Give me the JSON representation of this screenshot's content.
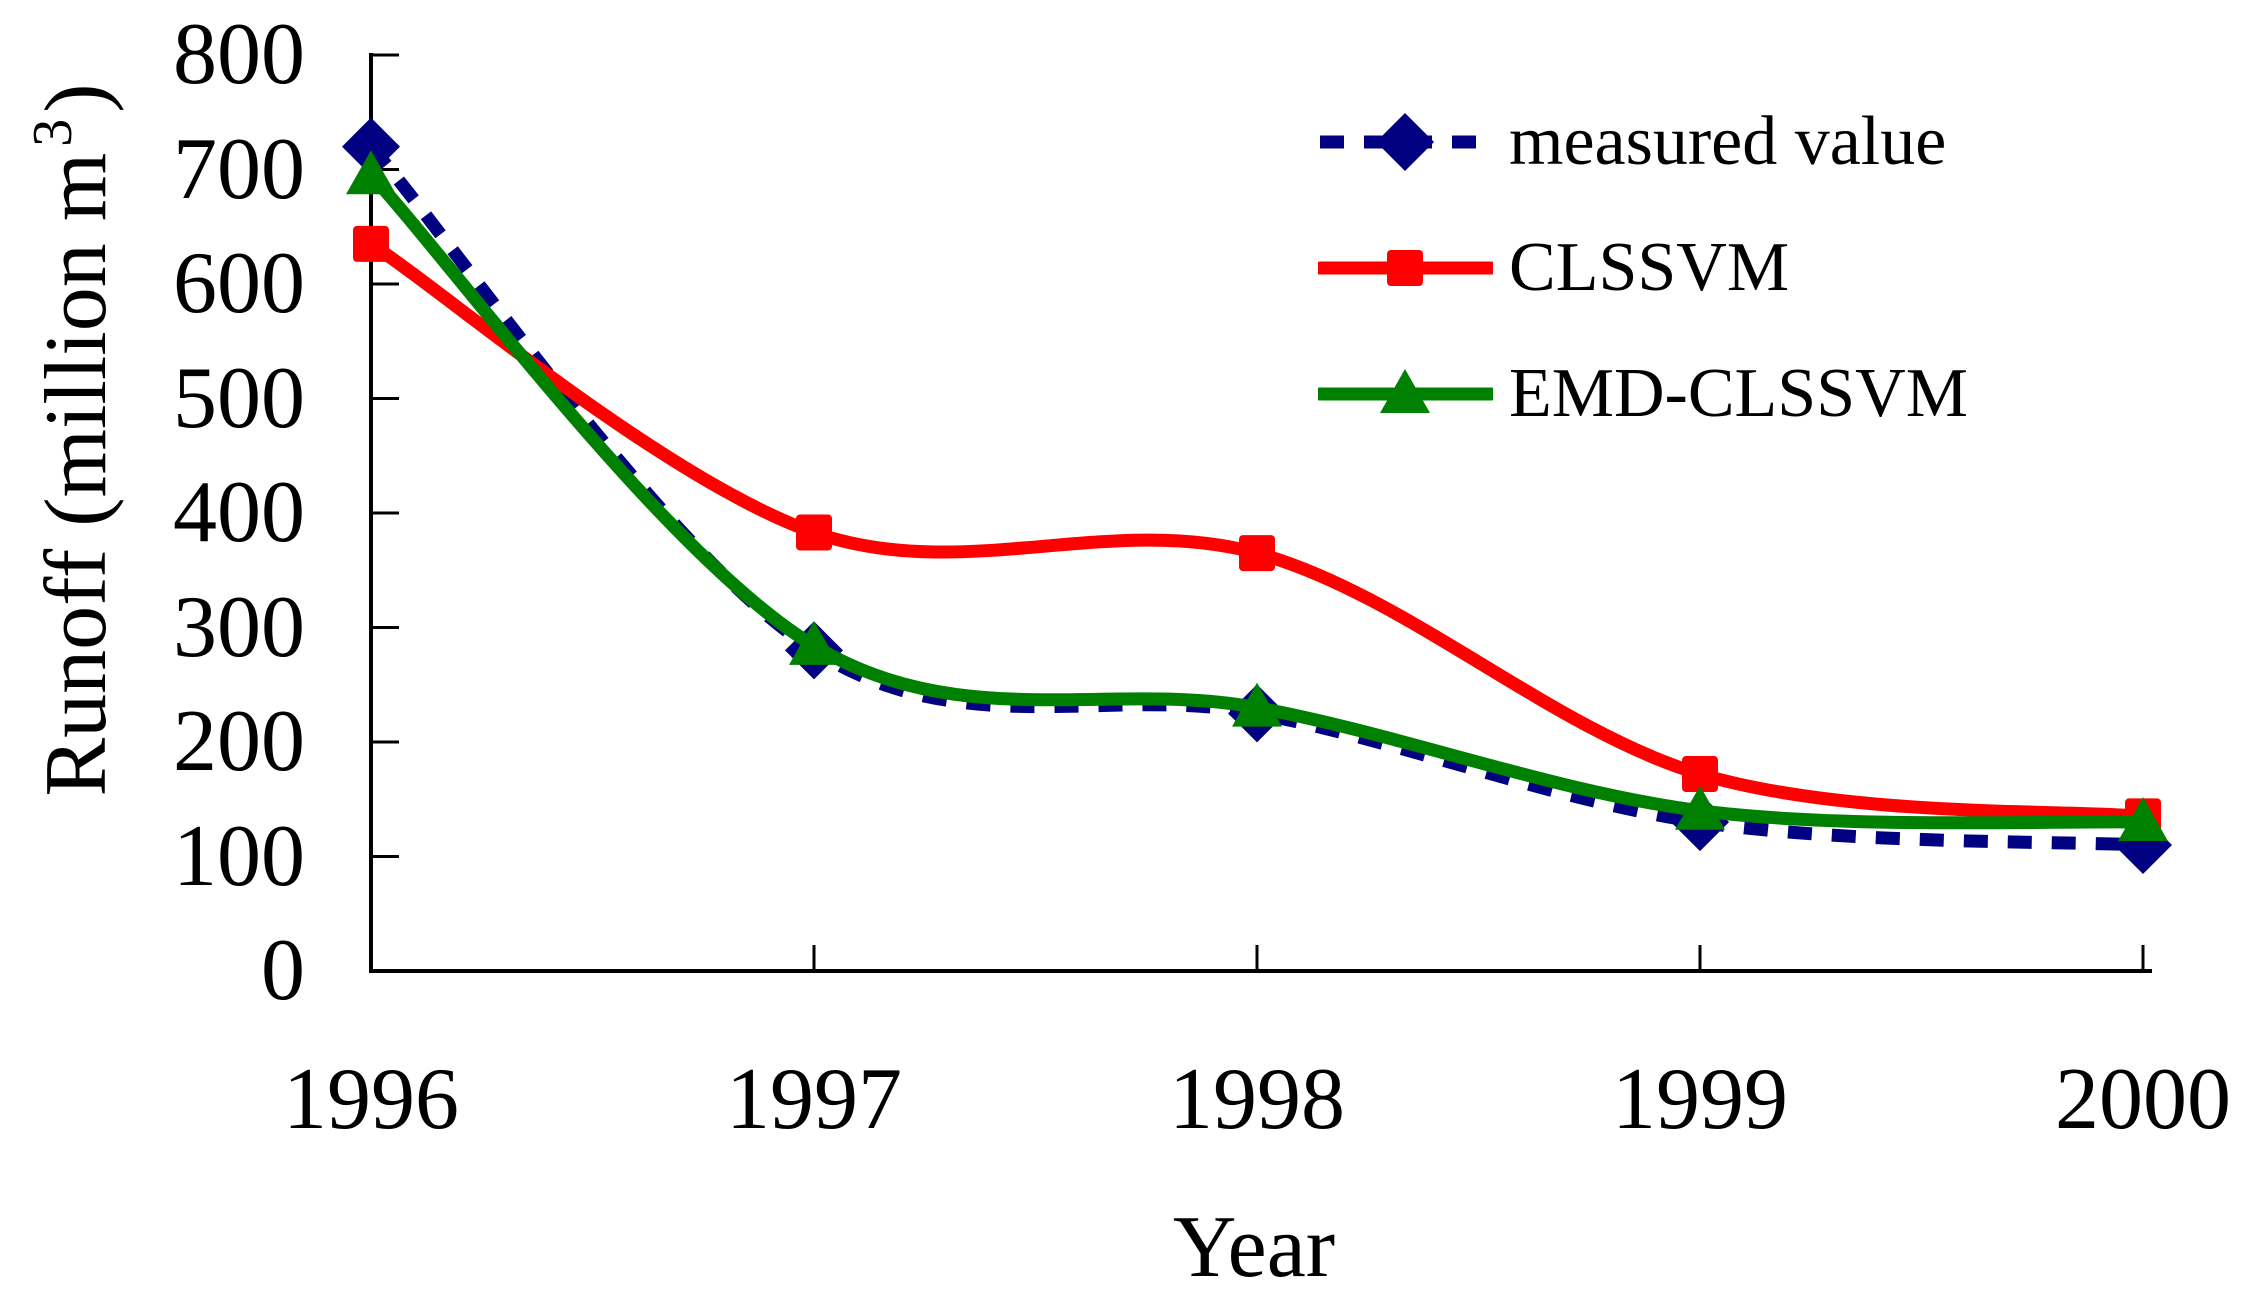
{
  "chart_data": {
    "type": "line",
    "title": "",
    "xlabel": "Year",
    "ylabel": "Runoff (million m3)",
    "ylabel_prefix": "Runoff (million m",
    "ylabel_superscript": "3",
    "ylabel_suffix": ")",
    "categories": [
      "1996",
      "1997",
      "1998",
      "1999",
      "2000"
    ],
    "y_tick_labels": [
      "0",
      "100",
      "200",
      "300",
      "400",
      "500",
      "600",
      "700",
      "800"
    ],
    "ylim": [
      0,
      800
    ],
    "y_tick_step": 100,
    "grid": false,
    "line_smoothing": true,
    "legend_position": "upper-right-inside",
    "axis_color": "#000000",
    "series": [
      {
        "name": "measured value",
        "color": "#000080",
        "line_style": "dashed",
        "marker": "diamond",
        "values": [
          720,
          280,
          225,
          130,
          110
        ]
      },
      {
        "name": "CLSSVM",
        "color": "#FF0000",
        "line_style": "solid",
        "marker": "square",
        "values": [
          635,
          383,
          365,
          172,
          135
        ]
      },
      {
        "name": "EMD-CLSSVM",
        "color": "#008000",
        "line_style": "solid",
        "marker": "triangle",
        "values": [
          695,
          284,
          230,
          140,
          130
        ]
      }
    ]
  }
}
